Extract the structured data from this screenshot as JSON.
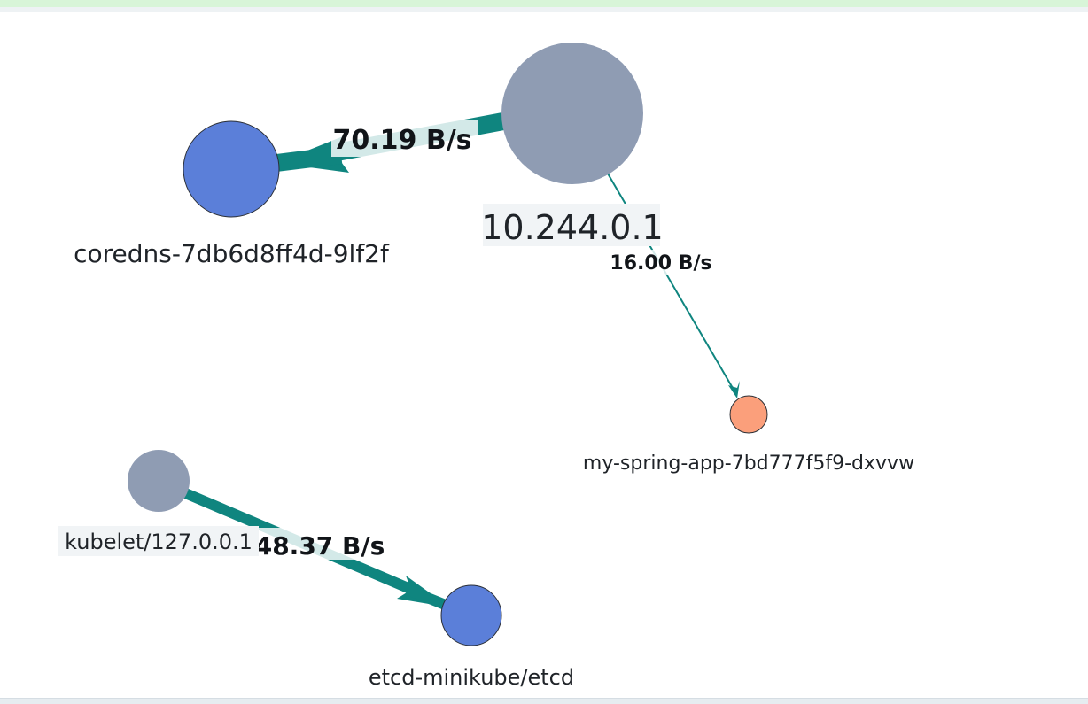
{
  "graph": {
    "nodes": [
      {
        "id": "coredns",
        "label": "coredns-7db6d8ff4d-9lf2f",
        "color": "#5b7fd9"
      },
      {
        "id": "ip10",
        "label": "10.244.0.1",
        "color": "#8f9cb3"
      },
      {
        "id": "springapp",
        "label": "my-spring-app-7bd777f5f9-dxvvw",
        "color": "#fb9f7b"
      },
      {
        "id": "kubelet",
        "label": "kubelet/127.0.0.1",
        "color": "#8f9cb3"
      },
      {
        "id": "etcd",
        "label": "etcd-minikube/etcd",
        "color": "#5b7fd9"
      }
    ],
    "edges": [
      {
        "from": "ip10",
        "to": "coredns",
        "label": "70.19 B/s"
      },
      {
        "from": "ip10",
        "to": "springapp",
        "label": "16.00 B/s"
      },
      {
        "from": "kubelet",
        "to": "etcd",
        "label": "48.37 B/s"
      }
    ],
    "edge_color": "#0f857f"
  }
}
